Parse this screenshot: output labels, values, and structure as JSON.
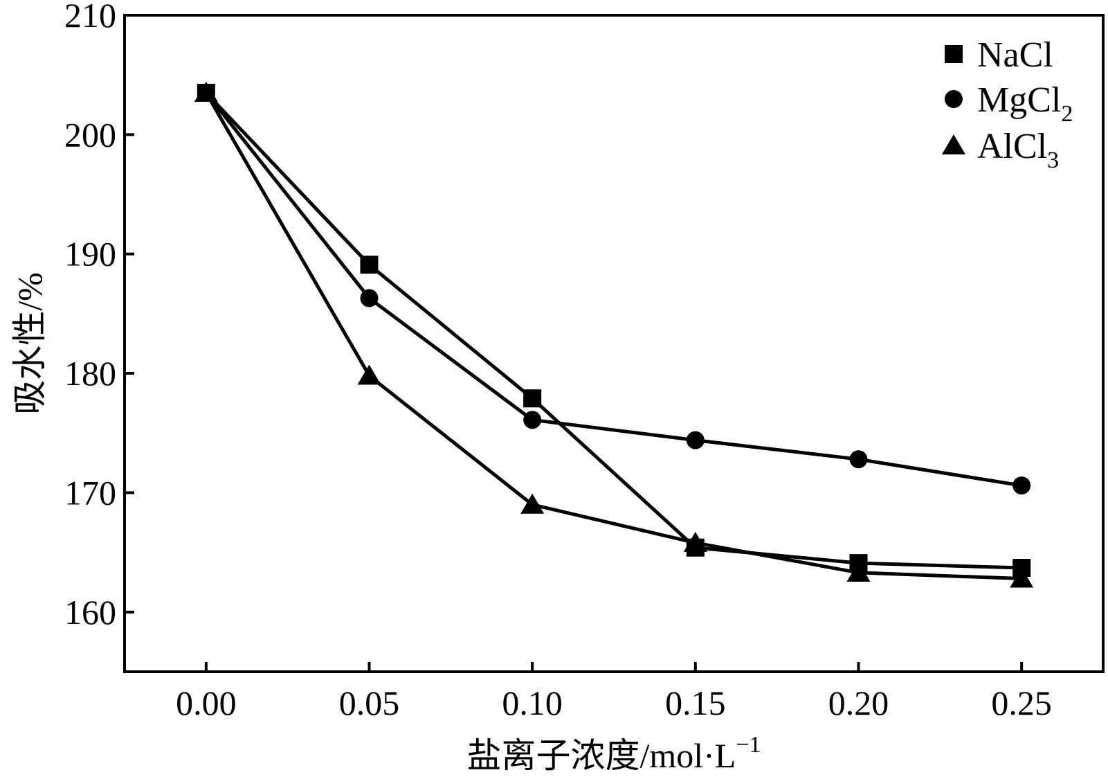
{
  "chart_data": {
    "type": "line",
    "title": "",
    "xlabel": "盐离子浓度/mol·L",
    "xlabel_sup": "−1",
    "ylabel": "吸水性/%",
    "x": [
      0.0,
      0.05,
      0.1,
      0.15,
      0.2,
      0.25
    ],
    "x_tick_labels": [
      "0.00",
      "0.05",
      "0.10",
      "0.15",
      "0.20",
      "0.25"
    ],
    "xlim": [
      -0.025,
      0.275
    ],
    "y_ticks": [
      160,
      170,
      180,
      190,
      200,
      210
    ],
    "y_tick_labels": [
      "160",
      "170",
      "180",
      "190",
      "200",
      "210"
    ],
    "ylim": [
      155,
      210
    ],
    "grid": false,
    "legend_position": "top-right",
    "series": [
      {
        "name": "NaCl",
        "name_main": "NaCl",
        "name_sub": "",
        "marker": "square",
        "color": "#000000",
        "values": [
          203.5,
          189.1,
          177.9,
          165.4,
          164.1,
          163.7
        ]
      },
      {
        "name": "MgCl2",
        "name_main": "MgCl",
        "name_sub": "2",
        "marker": "circle",
        "color": "#000000",
        "values": [
          203.5,
          186.3,
          176.1,
          174.4,
          172.8,
          170.6
        ]
      },
      {
        "name": "AlCl3",
        "name_main": "AlCl",
        "name_sub": "3",
        "marker": "triangle",
        "color": "#000000",
        "values": [
          203.5,
          179.8,
          169.0,
          165.8,
          163.3,
          162.8
        ]
      }
    ]
  }
}
